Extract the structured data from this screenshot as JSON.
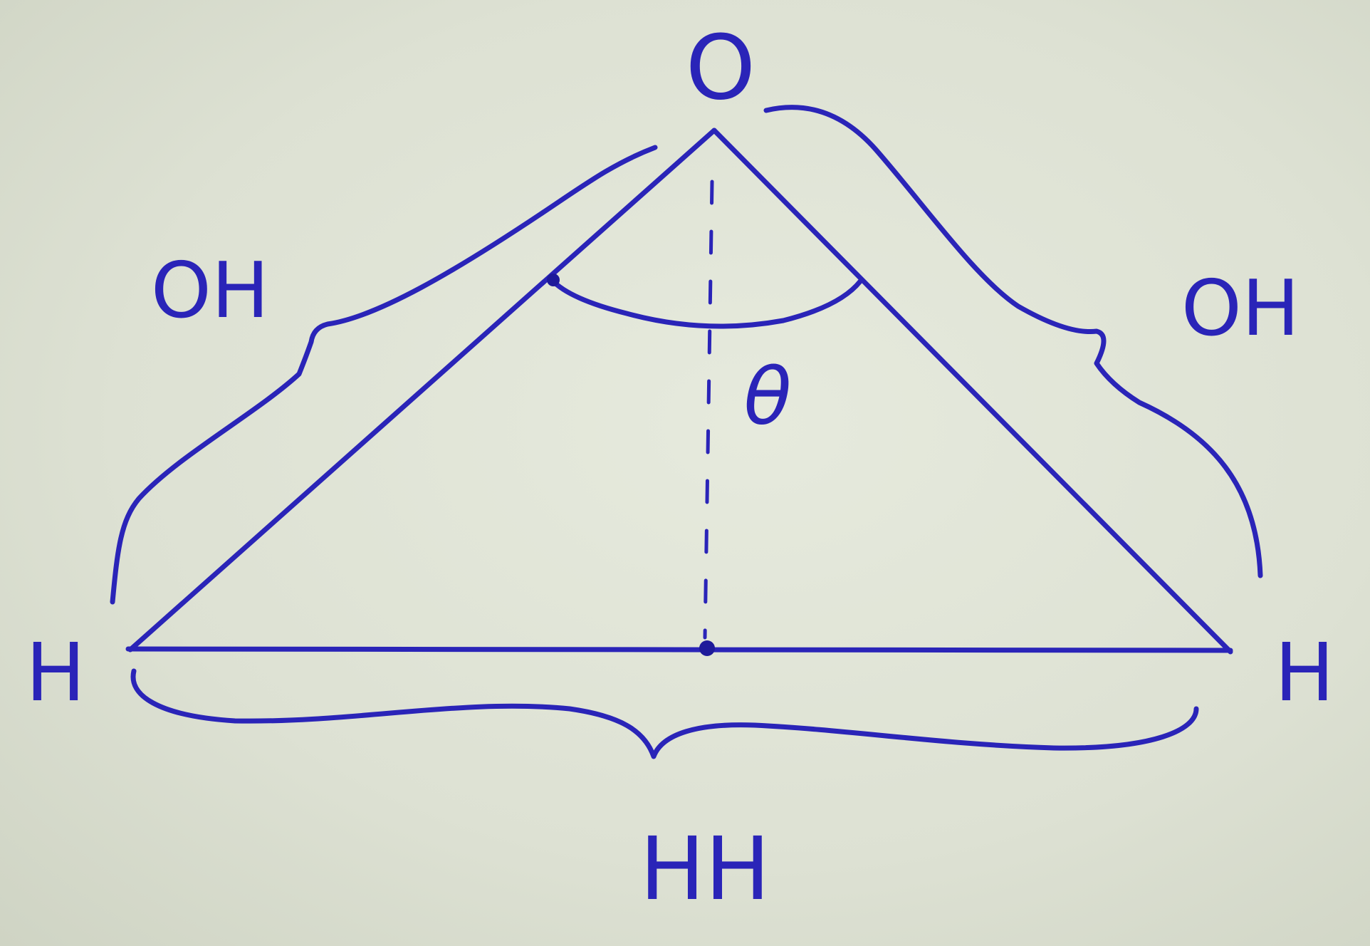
{
  "diagram": {
    "apex_label": "O",
    "left_label": "H",
    "right_label": "H",
    "left_bond_label": "OH",
    "right_bond_label": "OH",
    "base_label": "HH",
    "angle_label": "θ",
    "ink_color": "#2a24b8",
    "paper_color": "#dfe3d6"
  }
}
